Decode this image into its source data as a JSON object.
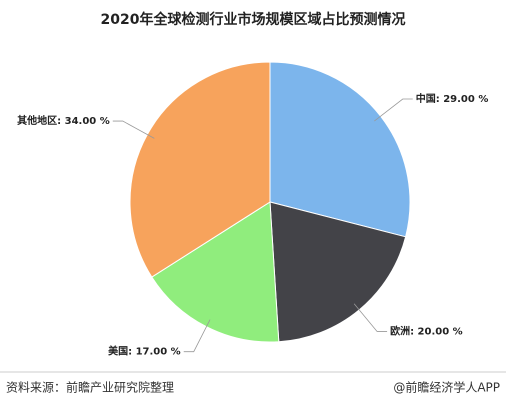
{
  "chart_data": {
    "type": "pie",
    "title": "2020年全球检测行业市场规模区域占比预测情况",
    "values": [
      29,
      20,
      17,
      34
    ],
    "value_labels": [
      "中国: 29.00 %",
      "欧洲: 20.00 %",
      "美国: 17.00 %",
      "其他地区: 34.00 %"
    ],
    "colors": [
      "#7cb5ec",
      "#434348",
      "#90ed7d",
      "#f7a35c"
    ],
    "source": "资料来源：前瞻产业研究院整理",
    "credit": "@前瞻经济学人APP"
  }
}
